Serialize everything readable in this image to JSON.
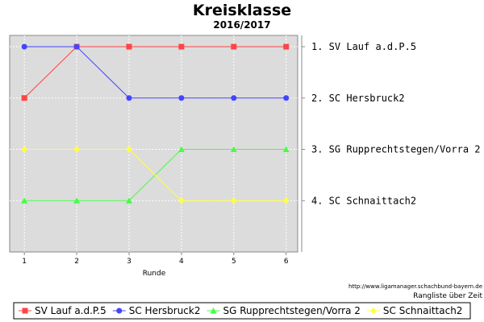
{
  "chart_data": {
    "type": "line",
    "title": "Kreisklasse",
    "subtitle": "2016/2017",
    "xlabel": "Runde",
    "ylabel": "",
    "x": [
      1,
      2,
      3,
      4,
      5,
      6
    ],
    "ylim": [
      1,
      5
    ],
    "y_inverted": true,
    "grid": true,
    "legend_position": "bottom",
    "series": [
      {
        "name": "SV Lauf a.d.P.5",
        "values": [
          2,
          1,
          1,
          1,
          1,
          1
        ],
        "color": "#ff4444",
        "marker": "square"
      },
      {
        "name": "SC Hersbruck2",
        "values": [
          1,
          1,
          2,
          2,
          2,
          2
        ],
        "color": "#4444ff",
        "marker": "circle"
      },
      {
        "name": "SG Rupprechtstegen/Vorra 2",
        "values": [
          4,
          4,
          4,
          3,
          3,
          3
        ],
        "color": "#44ff44",
        "marker": "triangle"
      },
      {
        "name": "SC Schnaittach2",
        "values": [
          3,
          3,
          3,
          4,
          4,
          4
        ],
        "color": "#ffff44",
        "marker": "diamond"
      }
    ],
    "final_ranking": [
      {
        "rank": "1.",
        "name": "SV Lauf a.d.P.5"
      },
      {
        "rank": "2.",
        "name": "SC Hersbruck2"
      },
      {
        "rank": "3.",
        "name": "SG Rupprechtstegen/Vorra 2"
      },
      {
        "rank": "4.",
        "name": "SC Schnaittach2"
      }
    ]
  },
  "source_url": "http://www.ligamanager.schachbund-bayern.de",
  "caption": "Rangliste über Zeit"
}
